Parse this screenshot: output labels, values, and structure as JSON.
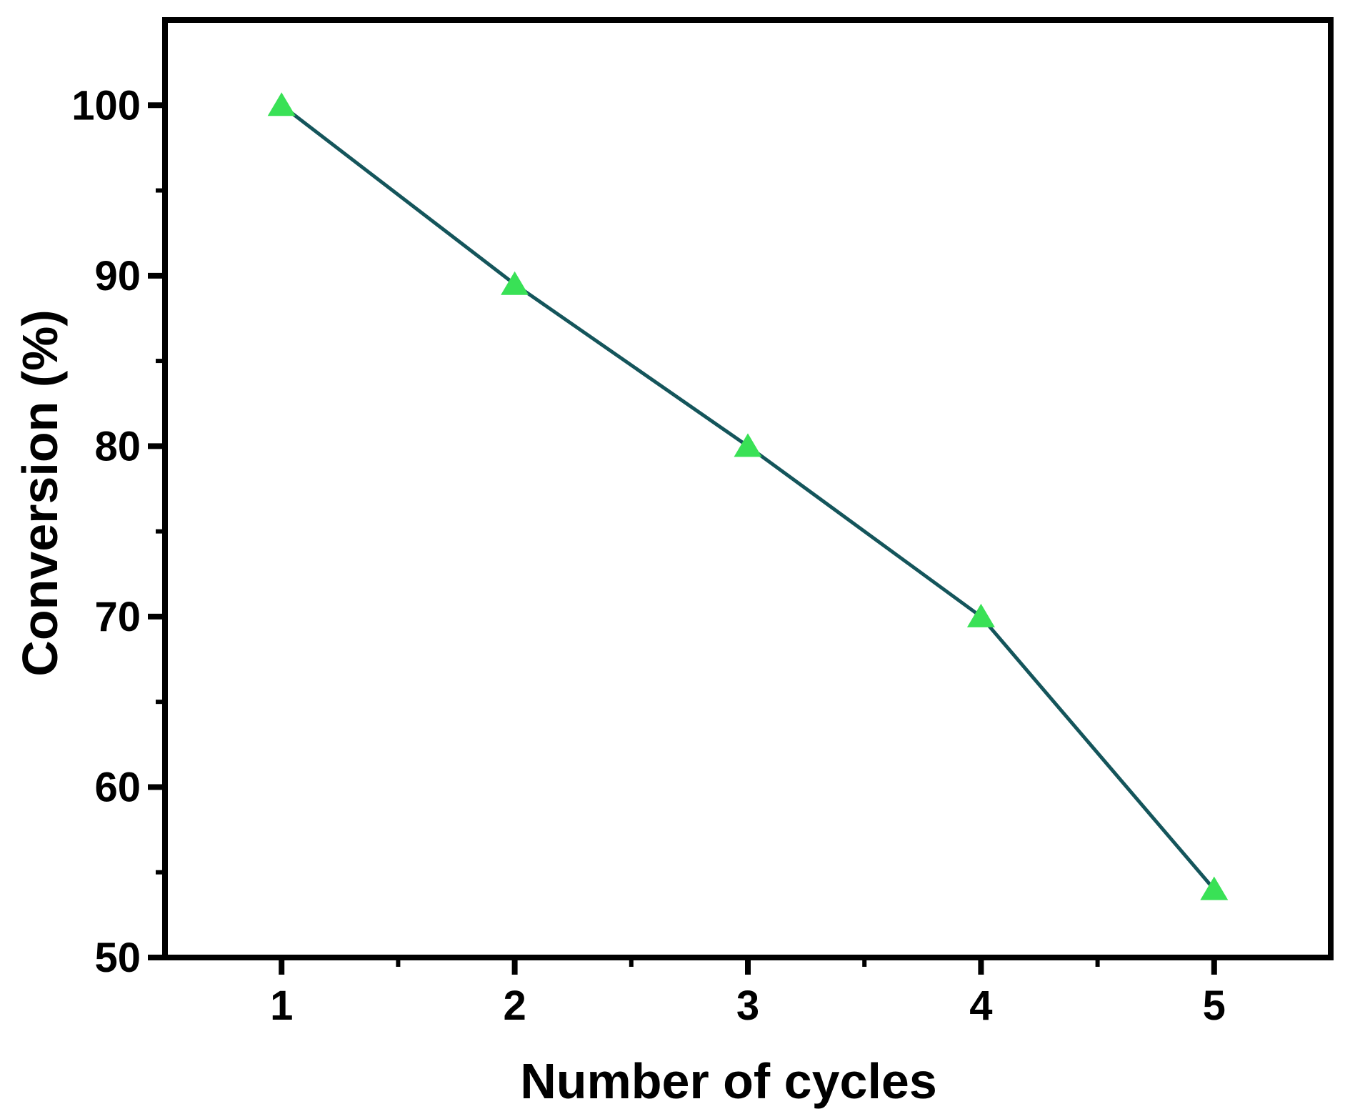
{
  "chart_data": {
    "type": "line",
    "title": "",
    "xlabel": "Number of cycles",
    "ylabel": "Conversion (%)",
    "x": [
      1,
      2,
      3,
      4,
      5
    ],
    "series": [
      {
        "name": "conversion",
        "values": [
          100,
          89.5,
          80,
          70,
          54
        ]
      }
    ],
    "xlim": [
      0.5,
      5.5
    ],
    "ylim": [
      50,
      105
    ],
    "x_major_ticks": [
      1,
      2,
      3,
      4,
      5
    ],
    "x_tick_labels": [
      "1",
      "2",
      "3",
      "4",
      "5"
    ],
    "x_minor_ticks": [
      1.5,
      2.5,
      3.5,
      4.5
    ],
    "y_major_ticks": [
      50,
      60,
      70,
      80,
      90,
      100
    ],
    "y_tick_labels": [
      "50",
      "60",
      "70",
      "80",
      "90",
      "100"
    ],
    "y_minor_ticks": [
      55,
      65,
      75,
      85,
      95
    ],
    "grid": false,
    "legend": "none",
    "marker": "triangle-up",
    "colors": {
      "marker": "#39e156",
      "line": "#14555b",
      "axis": "#000000",
      "text": "#000000",
      "background": "#ffffff"
    }
  }
}
